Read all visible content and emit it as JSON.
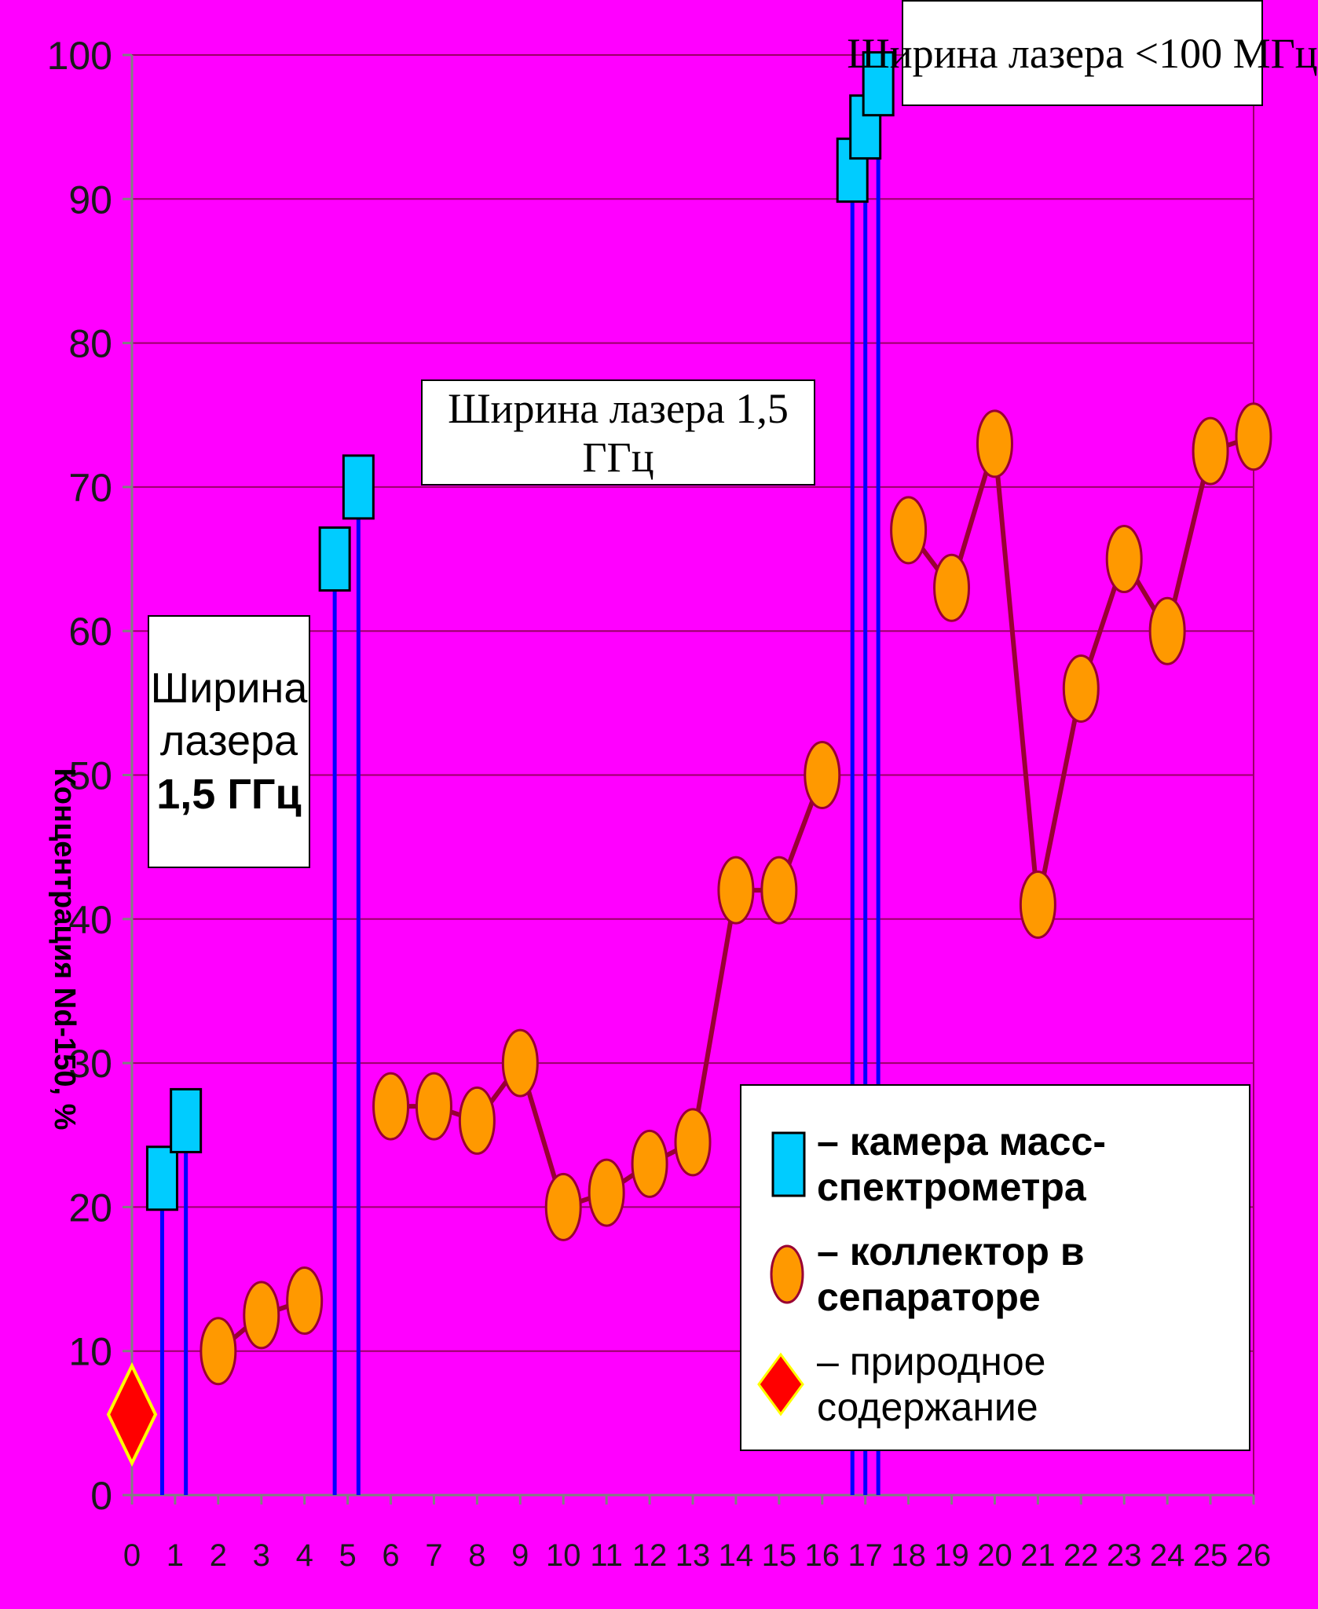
{
  "chart_data": {
    "type": "scatter",
    "ylabel": "Концентрация Nd-150, %",
    "ylim": [
      0,
      100
    ],
    "y_ticks": [
      0,
      10,
      20,
      30,
      40,
      50,
      60,
      70,
      80,
      90,
      100
    ],
    "xlim": [
      0,
      26
    ],
    "x_ticks": [
      0,
      1,
      2,
      3,
      4,
      5,
      6,
      7,
      8,
      9,
      10,
      11,
      12,
      13,
      14,
      15,
      16,
      17,
      18,
      19,
      20,
      21,
      22,
      23,
      24,
      25,
      26
    ],
    "grid": true,
    "series": [
      {
        "name": "камера масс-спектрометра",
        "marker": "square",
        "color": "#00ccff",
        "points": [
          {
            "x": 0.7,
            "y": 22
          },
          {
            "x": 1.25,
            "y": 26
          },
          {
            "x": 4.7,
            "y": 65
          },
          {
            "x": 5.25,
            "y": 70
          },
          {
            "x": 16.7,
            "y": 92
          },
          {
            "x": 17.0,
            "y": 95
          },
          {
            "x": 17.3,
            "y": 98
          }
        ]
      },
      {
        "name": "коллектор в сепараторе",
        "marker": "circle",
        "color": "#ff9900",
        "line_color": "#990033",
        "points": [
          {
            "x": 2,
            "y": 10
          },
          {
            "x": 3,
            "y": 12.5
          },
          {
            "x": 4,
            "y": 13.5
          },
          {
            "x": 6,
            "y": 27
          },
          {
            "x": 7,
            "y": 27
          },
          {
            "x": 8,
            "y": 26
          },
          {
            "x": 9,
            "y": 30
          },
          {
            "x": 10,
            "y": 20
          },
          {
            "x": 11,
            "y": 21
          },
          {
            "x": 12,
            "y": 23
          },
          {
            "x": 13,
            "y": 24.5
          },
          {
            "x": 14,
            "y": 42
          },
          {
            "x": 15,
            "y": 42
          },
          {
            "x": 16,
            "y": 50
          },
          {
            "x": 18,
            "y": 67
          },
          {
            "x": 19,
            "y": 63
          },
          {
            "x": 20,
            "y": 73
          },
          {
            "x": 21,
            "y": 41
          },
          {
            "x": 22,
            "y": 56
          },
          {
            "x": 23,
            "y": 65
          },
          {
            "x": 24,
            "y": 60
          },
          {
            "x": 25,
            "y": 72.5
          },
          {
            "x": 26,
            "y": 73.5
          }
        ]
      },
      {
        "name": "природное содержание",
        "marker": "diamond",
        "color": "#ff0000",
        "points": [
          {
            "x": 0,
            "y": 5.6
          }
        ]
      }
    ],
    "annotations": [
      {
        "lines": [
          "Ширина",
          "лазера",
          "1,5  ГГц"
        ]
      },
      {
        "lines": [
          "Ширина лазера 1,5  ГГц"
        ]
      },
      {
        "lines": [
          "Ширина лазера  <100  МГц"
        ]
      }
    ],
    "legend": {
      "placement": "bottom-right",
      "entries": [
        {
          "label": "– камера масс-спектрометра"
        },
        {
          "label": "– коллектор в сепараторе"
        },
        {
          "label": "– природное содержание"
        }
      ]
    }
  },
  "colors": {
    "background": "#ff00ff",
    "grid": "#990066",
    "mass_spec_square": "#00ccff",
    "collector_circle": "#ff9900",
    "collector_line": "#990033",
    "natural_diamond": "#ff0000",
    "stem_line": "#0000ff"
  }
}
